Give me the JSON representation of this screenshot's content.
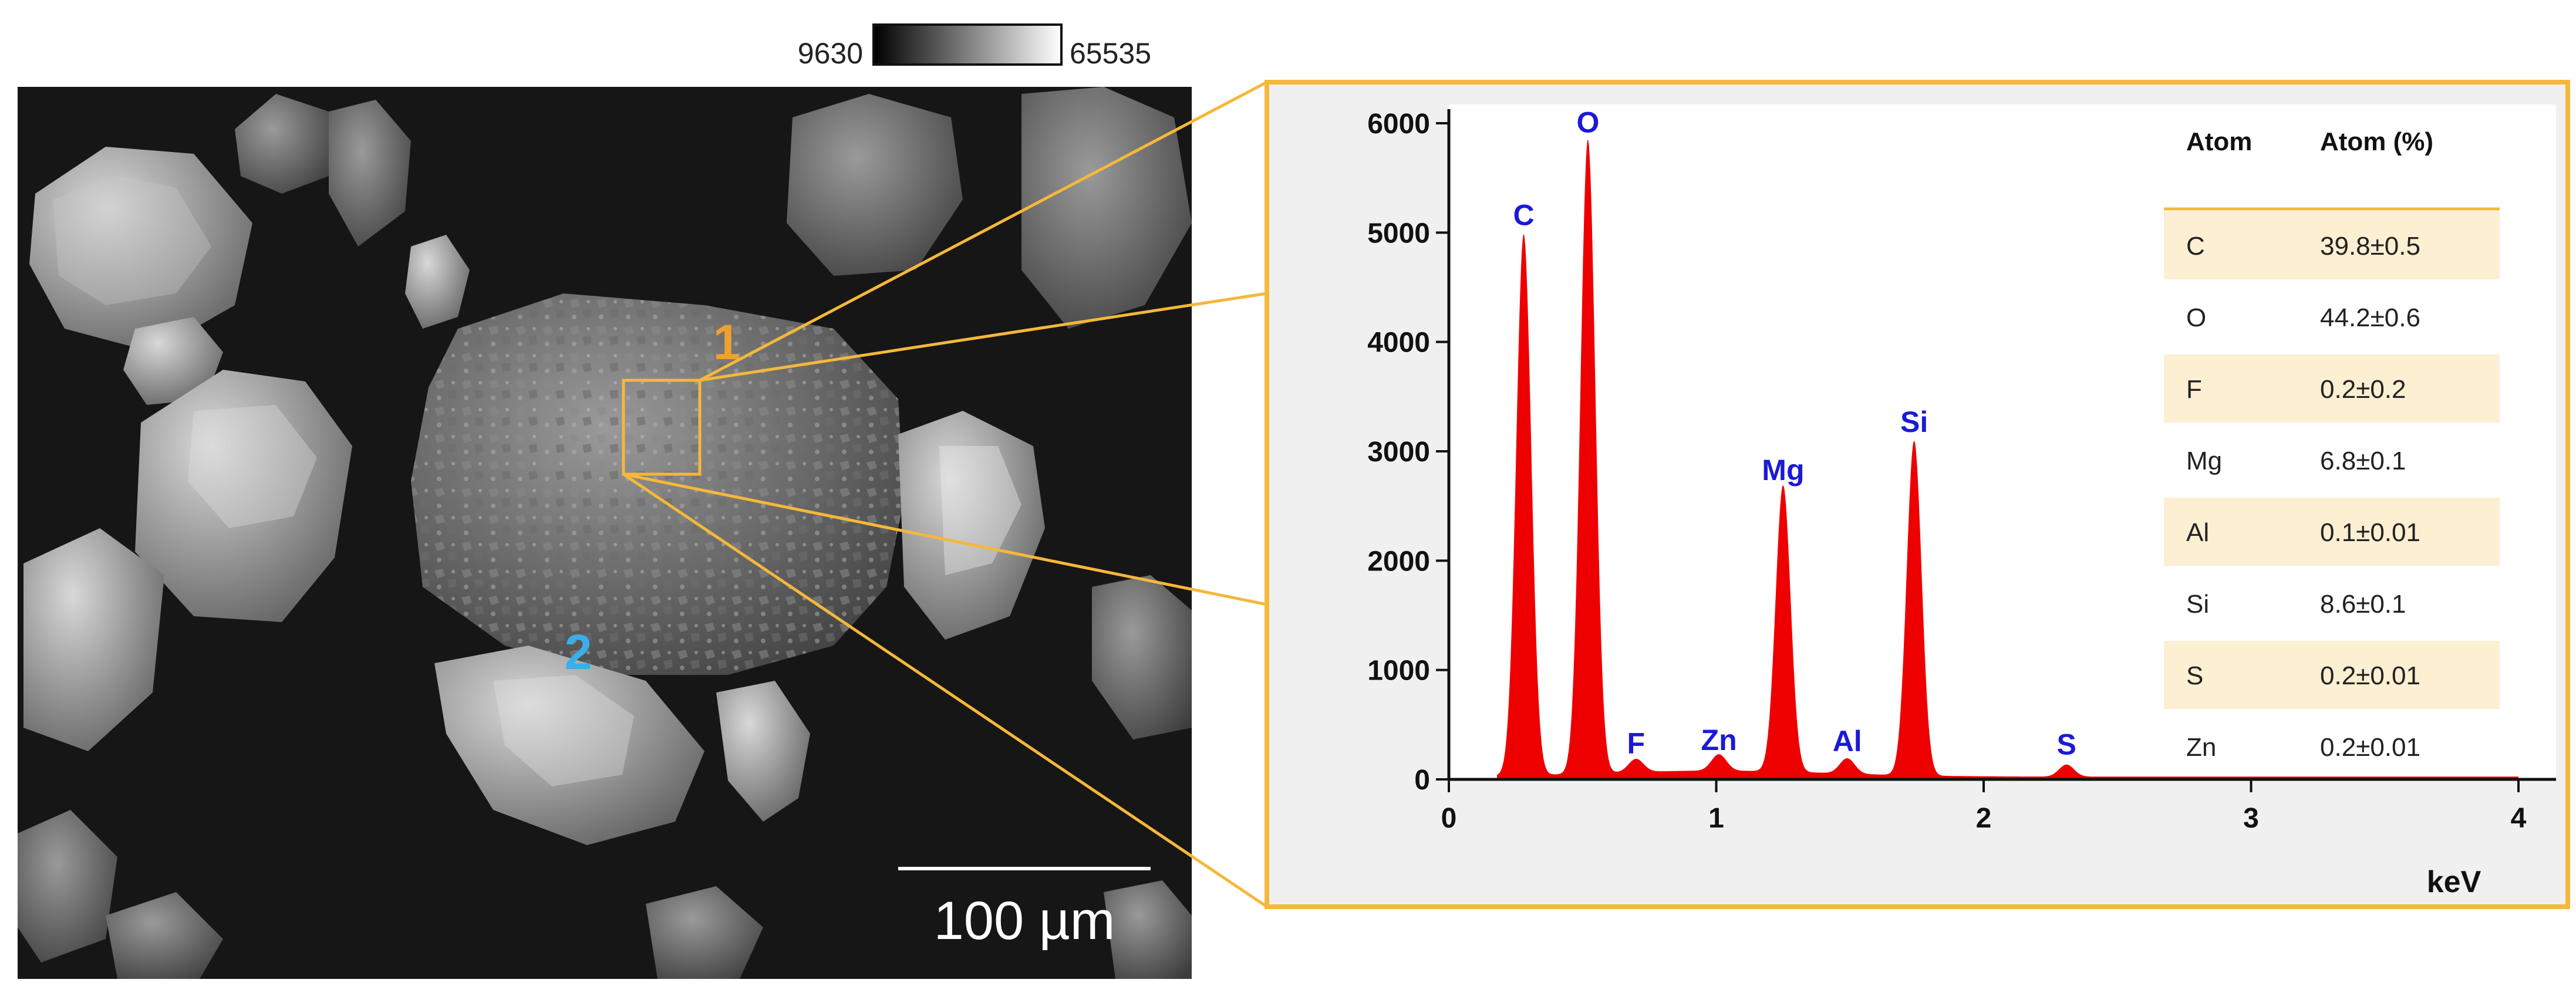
{
  "colorbar": {
    "min_label": "9630",
    "max_label": "65535"
  },
  "sem_image": {
    "scale_bar_label": "100 µm",
    "region_labels": [
      {
        "text": "1",
        "color": "#f0a030"
      },
      {
        "text": "2",
        "color": "#3aaee8"
      }
    ]
  },
  "colors": {
    "frame": "#f5b83a",
    "spectrum": "#ee0000",
    "peak_text": "#1a1ad6",
    "table_stripe": "#fcefd2"
  },
  "chart_data": {
    "type": "area",
    "xlabel": "keV",
    "ylabel": "",
    "xlim": [
      0,
      4
    ],
    "ylim": [
      0,
      6000
    ],
    "x_ticks": [
      0,
      1,
      2,
      3,
      4
    ],
    "y_ticks": [
      0,
      1000,
      2000,
      3000,
      4000,
      5000,
      6000
    ],
    "peaks": [
      {
        "label": "C",
        "x": 0.28,
        "y": 4950
      },
      {
        "label": "O",
        "x": 0.52,
        "y": 5800
      },
      {
        "label": "F",
        "x": 0.7,
        "y": 120
      },
      {
        "label": "Zn",
        "x": 1.01,
        "y": 150
      },
      {
        "label": "Mg",
        "x": 1.25,
        "y": 2620
      },
      {
        "label": "Al",
        "x": 1.49,
        "y": 140
      },
      {
        "label": "Si",
        "x": 1.74,
        "y": 3060
      },
      {
        "label": "S",
        "x": 2.31,
        "y": 110
      }
    ],
    "table": {
      "headers": [
        "Atom",
        "Atom (%)"
      ],
      "rows": [
        [
          "C",
          "39.8±0.5"
        ],
        [
          "O",
          "44.2±0.6"
        ],
        [
          "F",
          "0.2±0.2"
        ],
        [
          "Mg",
          "6.8±0.1"
        ],
        [
          "Al",
          "0.1±0.01"
        ],
        [
          "Si",
          "8.6±0.1"
        ],
        [
          "S",
          "0.2±0.01"
        ],
        [
          "Zn",
          "0.2±0.01"
        ]
      ]
    }
  }
}
